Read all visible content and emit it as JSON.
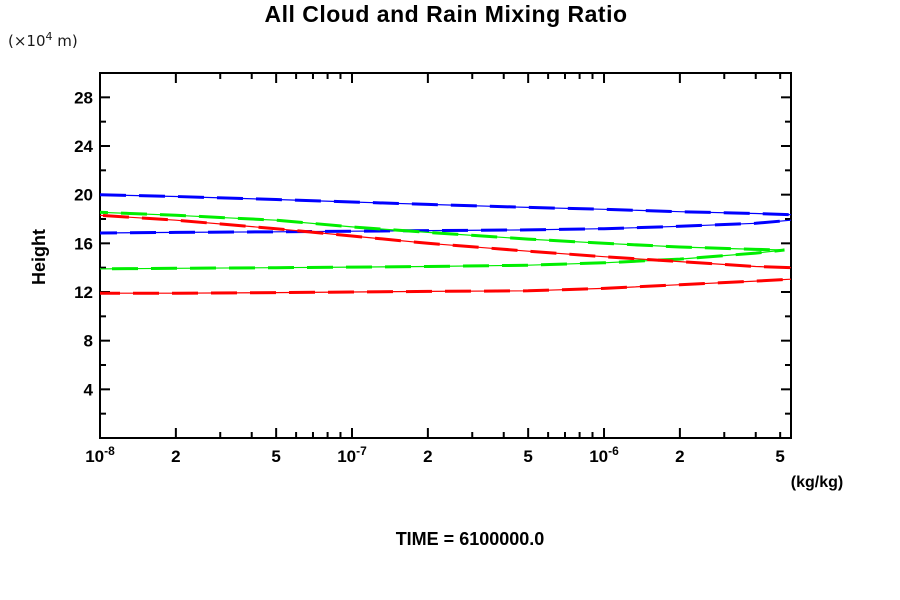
{
  "header": {
    "title": "All Cloud and Rain Mixing Ratio"
  },
  "axes": {
    "y_unit_prefix": "(×10",
    "y_unit_sup": "4",
    "y_unit_suffix": " m)",
    "y_label": "Height",
    "x_unit": "(kg/kg)"
  },
  "footer": {
    "time_label": "TIME = 6100000.0"
  },
  "chart_data": {
    "type": "line",
    "title": "All Cloud and Rain Mixing Ratio",
    "xlabel": "(kg/kg)",
    "ylabel": "Height (×10^4 m)",
    "x_scale": "log10",
    "xlim": [
      1e-08,
      5.52e-06
    ],
    "ylim": [
      0,
      30
    ],
    "grid": false,
    "legend": "none",
    "y_tick_minor_step": 2,
    "y_ticks_labeled": [
      4,
      8,
      12,
      16,
      20,
      24,
      28
    ],
    "x_tick_decades": [
      -8,
      -7,
      -6
    ],
    "x_ticks_labeled": [
      {
        "v": 1e-08,
        "base": "10",
        "sup": "-8"
      },
      {
        "v": 2e-08,
        "base": "2"
      },
      {
        "v": 5e-08,
        "base": "5"
      },
      {
        "v": 1e-07,
        "base": "10",
        "sup": "-7"
      },
      {
        "v": 2e-07,
        "base": "2"
      },
      {
        "v": 5e-07,
        "base": "5"
      },
      {
        "v": 1e-06,
        "base": "10",
        "sup": "-6"
      },
      {
        "v": 2e-06,
        "base": "2"
      },
      {
        "v": 5e-06,
        "base": "5"
      }
    ],
    "series": [
      {
        "name": "blue-profile-upper-branch",
        "color": "#0000ff",
        "points": [
          [
            1e-08,
            20.0
          ],
          [
            2e-08,
            19.85
          ],
          [
            5e-08,
            19.6
          ],
          [
            1e-07,
            19.4
          ],
          [
            2e-07,
            19.2
          ],
          [
            5e-07,
            18.95
          ],
          [
            1e-06,
            18.8
          ],
          [
            2e-06,
            18.6
          ],
          [
            4e-06,
            18.45
          ],
          [
            5.52e-06,
            18.35
          ]
        ]
      },
      {
        "name": "blue-profile-lower-branch",
        "color": "#0000ff",
        "points": [
          [
            1e-08,
            16.85
          ],
          [
            2e-08,
            16.9
          ],
          [
            5e-08,
            16.95
          ],
          [
            1e-07,
            17.0
          ],
          [
            2e-07,
            17.05
          ],
          [
            5e-07,
            17.1
          ],
          [
            1e-06,
            17.2
          ],
          [
            2e-06,
            17.4
          ],
          [
            4e-06,
            17.65
          ],
          [
            5.52e-06,
            17.9
          ]
        ]
      },
      {
        "name": "green-profile-upper-branch",
        "color": "#00ee00",
        "points": [
          [
            1e-08,
            18.55
          ],
          [
            2e-08,
            18.3
          ],
          [
            5e-08,
            17.9
          ],
          [
            1e-07,
            17.35
          ],
          [
            2e-07,
            16.9
          ],
          [
            5e-07,
            16.35
          ],
          [
            1e-06,
            16.0
          ],
          [
            2e-06,
            15.7
          ],
          [
            4e-06,
            15.5
          ],
          [
            5.2e-06,
            15.45
          ]
        ]
      },
      {
        "name": "green-profile-lower-branch",
        "color": "#00ee00",
        "points": [
          [
            1e-08,
            13.9
          ],
          [
            2e-08,
            13.95
          ],
          [
            5e-08,
            14.0
          ],
          [
            1e-07,
            14.05
          ],
          [
            2e-07,
            14.1
          ],
          [
            5e-07,
            14.2
          ],
          [
            1e-06,
            14.4
          ],
          [
            2e-06,
            14.7
          ],
          [
            4e-06,
            15.2
          ],
          [
            5.2e-06,
            15.45
          ]
        ]
      },
      {
        "name": "red-profile-upper-branch",
        "color": "#ff0000",
        "points": [
          [
            1e-08,
            18.3
          ],
          [
            2e-08,
            17.9
          ],
          [
            5e-08,
            17.2
          ],
          [
            1e-07,
            16.6
          ],
          [
            2e-07,
            16.0
          ],
          [
            5e-07,
            15.35
          ],
          [
            1e-06,
            14.9
          ],
          [
            2e-06,
            14.5
          ],
          [
            4e-06,
            14.1
          ],
          [
            5.52e-06,
            14.0
          ]
        ]
      },
      {
        "name": "red-profile-lower-branch",
        "color": "#ff0000",
        "points": [
          [
            1e-08,
            11.9
          ],
          [
            2e-08,
            11.9
          ],
          [
            5e-08,
            11.95
          ],
          [
            1e-07,
            12.0
          ],
          [
            2e-07,
            12.05
          ],
          [
            5e-07,
            12.1
          ],
          [
            1e-06,
            12.3
          ],
          [
            2e-06,
            12.6
          ],
          [
            4e-06,
            12.9
          ],
          [
            5.52e-06,
            13.05
          ]
        ]
      }
    ]
  }
}
